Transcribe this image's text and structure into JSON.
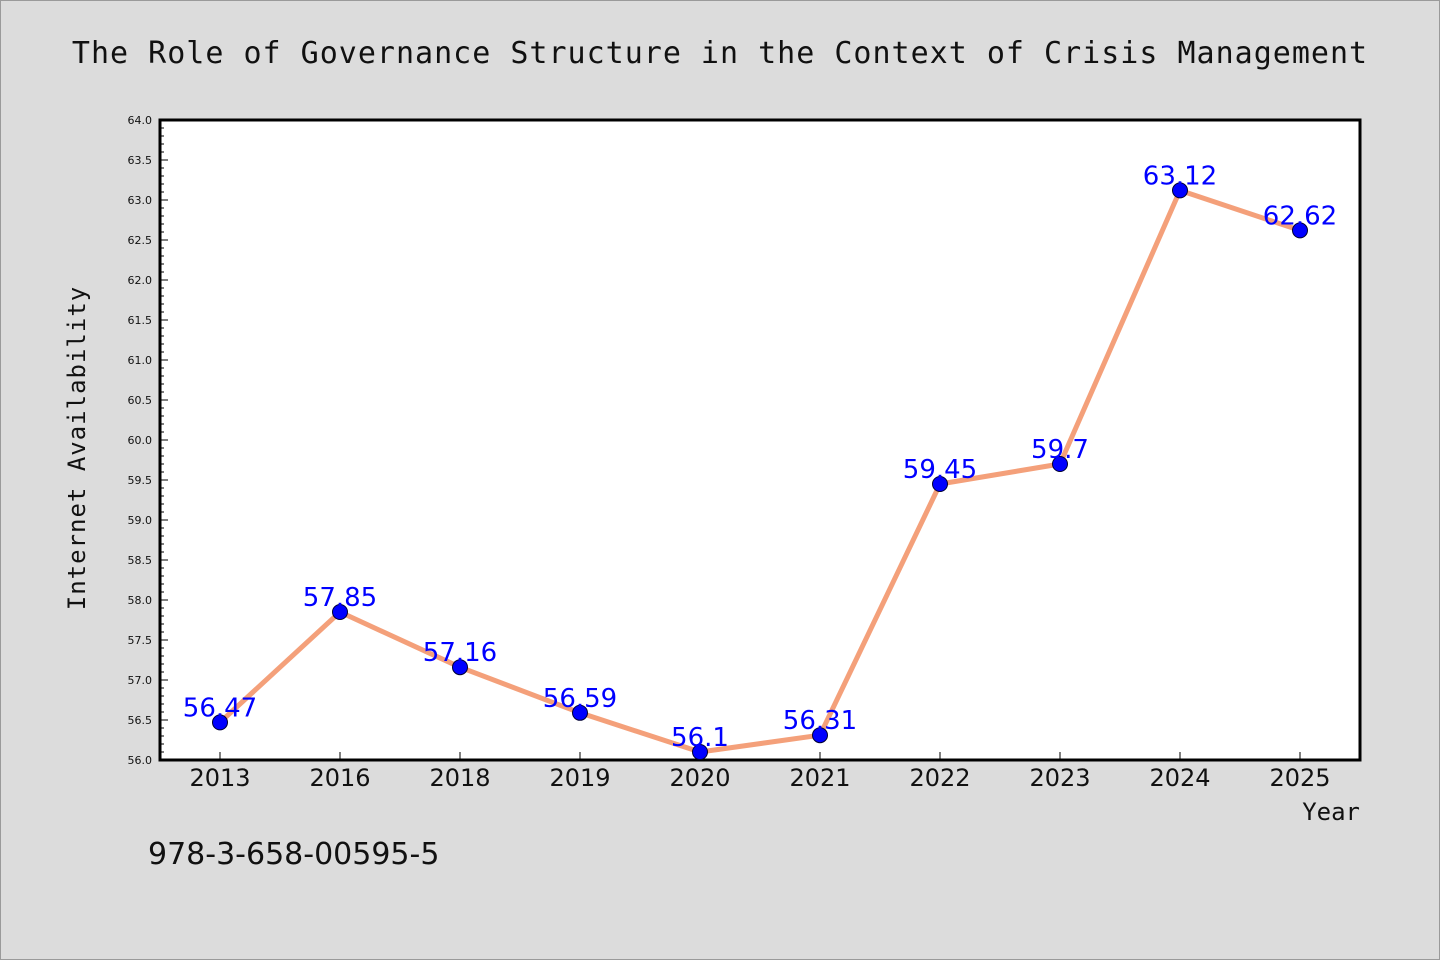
{
  "chart_data": {
    "type": "line",
    "title": "The Role of Governance Structure in the Context of Crisis Management",
    "xlabel": "Year",
    "ylabel": "Internet Availability",
    "categories": [
      "2013",
      "2016",
      "2018",
      "2019",
      "2020",
      "2021",
      "2022",
      "2023",
      "2024",
      "2025"
    ],
    "series": [
      {
        "values": [
          56.47,
          57.85,
          57.16,
          56.59,
          56.1,
          56.31,
          59.45,
          59.7,
          63.12,
          62.62
        ],
        "data_labels": [
          "56.47",
          "57.85",
          "57.16",
          "56.59",
          "56.1",
          "56.31",
          "59.45",
          "59.7",
          "63.12",
          "62.62"
        ]
      }
    ],
    "ylim": [
      56.0,
      64.0
    ],
    "yticks": [
      "56.0",
      "56.5",
      "57.0",
      "57.5",
      "58.0",
      "58.5",
      "59.0",
      "59.5",
      "60.0",
      "60.5",
      "61.0",
      "61.5",
      "62.0",
      "62.5",
      "63.0",
      "63.5",
      "64.0"
    ],
    "grid": false,
    "colors": {
      "line": "#f4a07a",
      "marker": "#0000ff",
      "data_label": "#0000ff",
      "background": "#dcdcdc",
      "plot_area": "#ffffff"
    }
  },
  "footer": {
    "isbn": "978-3-658-00595-5"
  }
}
